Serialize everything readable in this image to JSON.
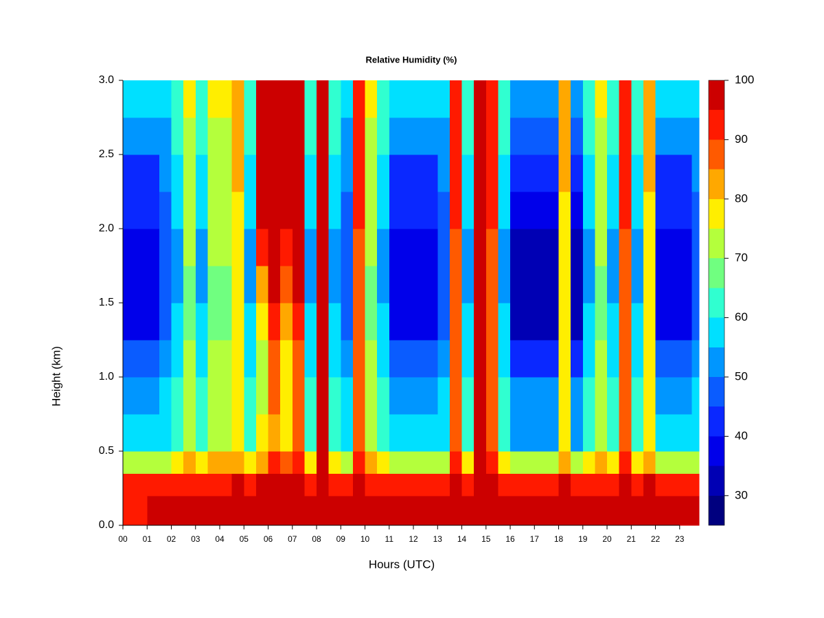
{
  "chart_data": {
    "type": "heatmap",
    "title": "Relative Humidity (%)",
    "x_label": "Hours (UTC)",
    "y_label": "Height (km)",
    "x": [
      0,
      0.5,
      1,
      1.5,
      2,
      2.5,
      3,
      3.5,
      4,
      4.5,
      5,
      5.5,
      6,
      6.5,
      7,
      7.5,
      8,
      8.5,
      9,
      9.5,
      10,
      10.5,
      11,
      11.5,
      12,
      12.5,
      13,
      13.5,
      14,
      14.5,
      15,
      15.5,
      16,
      16.5,
      17,
      17.5,
      18,
      18.5,
      19,
      19.5,
      20,
      20.5,
      21,
      21.5,
      22,
      22.5,
      23,
      23.5,
      23.8
    ],
    "y": [
      0,
      0.2,
      0.35,
      0.5,
      0.75,
      1,
      1.25,
      1.5,
      1.75,
      2,
      2.25,
      2.5,
      2.75,
      3
    ],
    "z": [
      [
        92,
        92,
        97,
        97,
        97,
        97,
        97,
        97,
        97,
        97,
        97,
        97,
        98,
        97,
        98,
        97,
        98,
        97,
        97,
        97,
        97,
        97,
        97,
        97,
        97,
        97,
        97,
        97,
        97,
        98,
        97,
        97,
        97,
        97,
        97,
        97,
        97,
        97,
        97,
        97,
        97,
        97,
        97,
        97,
        97,
        97,
        97,
        97
      ],
      [
        90,
        90,
        92,
        92,
        93,
        94,
        93,
        94,
        94,
        95,
        93,
        95,
        96,
        95,
        96,
        93,
        97,
        93,
        92,
        96,
        94,
        93,
        92,
        92,
        92,
        92,
        92,
        96,
        93,
        97,
        96,
        93,
        92,
        92,
        92,
        92,
        95,
        92,
        93,
        94,
        93,
        96,
        93,
        95,
        92,
        92,
        92,
        92
      ],
      [
        72,
        72,
        72,
        74,
        76,
        80,
        76,
        80,
        80,
        84,
        76,
        84,
        90,
        86,
        90,
        76,
        96,
        76,
        74,
        92,
        80,
        76,
        72,
        72,
        72,
        72,
        74,
        92,
        76,
        96,
        92,
        76,
        72,
        72,
        72,
        72,
        84,
        72,
        76,
        80,
        76,
        92,
        76,
        84,
        72,
        72,
        72,
        74
      ],
      [
        55,
        55,
        55,
        57,
        62,
        74,
        62,
        74,
        74,
        78,
        62,
        76,
        84,
        78,
        86,
        62,
        95,
        62,
        57,
        88,
        74,
        62,
        55,
        55,
        55,
        55,
        57,
        88,
        62,
        95,
        88,
        62,
        53,
        53,
        53,
        53,
        78,
        53,
        62,
        74,
        62,
        88,
        62,
        78,
        55,
        55,
        55,
        57
      ],
      [
        52,
        52,
        52,
        55,
        60,
        72,
        60,
        72,
        72,
        77,
        60,
        74,
        86,
        76,
        86,
        60,
        96,
        60,
        55,
        88,
        72,
        60,
        52,
        52,
        52,
        52,
        55,
        88,
        60,
        96,
        88,
        60,
        50,
        50,
        50,
        50,
        77,
        50,
        60,
        72,
        60,
        88,
        60,
        77,
        52,
        52,
        52,
        55
      ],
      [
        45,
        45,
        45,
        50,
        57,
        70,
        57,
        70,
        70,
        76,
        57,
        74,
        88,
        76,
        88,
        57,
        97,
        57,
        50,
        88,
        70,
        57,
        45,
        45,
        45,
        45,
        50,
        88,
        57,
        97,
        88,
        57,
        42,
        42,
        42,
        42,
        76,
        42,
        57,
        70,
        57,
        88,
        57,
        76,
        45,
        45,
        45,
        50
      ],
      [
        38,
        38,
        38,
        46,
        55,
        69,
        55,
        69,
        69,
        76,
        55,
        76,
        92,
        80,
        92,
        55,
        97,
        55,
        46,
        88,
        69,
        55,
        38,
        38,
        38,
        38,
        46,
        88,
        55,
        97,
        88,
        55,
        34,
        34,
        34,
        34,
        76,
        34,
        55,
        69,
        55,
        88,
        55,
        76,
        38,
        38,
        38,
        46
      ],
      [
        36,
        36,
        36,
        45,
        54,
        69,
        54,
        69,
        69,
        77,
        54,
        84,
        96,
        88,
        96,
        54,
        97,
        54,
        45,
        88,
        69,
        54,
        36,
        36,
        36,
        36,
        45,
        88,
        54,
        97,
        88,
        54,
        32,
        32,
        32,
        32,
        77,
        32,
        54,
        69,
        54,
        88,
        54,
        77,
        36,
        36,
        36,
        45
      ],
      [
        36,
        36,
        36,
        45,
        54,
        70,
        54,
        70,
        70,
        78,
        54,
        92,
        97,
        94,
        97,
        54,
        97,
        54,
        45,
        89,
        70,
        54,
        36,
        36,
        36,
        36,
        45,
        89,
        54,
        97,
        89,
        54,
        32,
        32,
        32,
        32,
        78,
        32,
        54,
        70,
        54,
        89,
        54,
        78,
        36,
        36,
        36,
        45
      ],
      [
        40,
        40,
        40,
        47,
        55,
        70,
        55,
        70,
        70,
        78,
        55,
        95,
        97,
        96,
        97,
        55,
        97,
        55,
        47,
        90,
        70,
        55,
        40,
        40,
        40,
        40,
        47,
        90,
        55,
        97,
        90,
        55,
        37,
        37,
        37,
        37,
        78,
        37,
        55,
        70,
        55,
        90,
        55,
        78,
        40,
        40,
        40,
        47
      ],
      [
        44,
        44,
        44,
        50,
        57,
        72,
        57,
        72,
        72,
        80,
        57,
        96,
        97,
        96,
        97,
        57,
        97,
        57,
        50,
        91,
        72,
        57,
        44,
        44,
        44,
        44,
        50,
        91,
        57,
        97,
        91,
        57,
        42,
        42,
        42,
        42,
        80,
        42,
        57,
        72,
        57,
        91,
        57,
        80,
        44,
        44,
        44,
        50
      ],
      [
        50,
        50,
        50,
        54,
        60,
        74,
        60,
        74,
        74,
        82,
        60,
        97,
        97,
        97,
        97,
        60,
        97,
        60,
        54,
        92,
        74,
        60,
        50,
        50,
        50,
        50,
        54,
        92,
        60,
        97,
        92,
        60,
        48,
        48,
        48,
        48,
        82,
        48,
        60,
        74,
        60,
        92,
        60,
        82,
        50,
        50,
        50,
        54
      ],
      [
        55,
        55,
        55,
        57,
        62,
        76,
        62,
        76,
        76,
        84,
        62,
        97,
        97,
        97,
        97,
        62,
        97,
        62,
        57,
        93,
        76,
        62,
        55,
        55,
        55,
        55,
        57,
        93,
        62,
        97,
        93,
        62,
        53,
        53,
        53,
        53,
        84,
        53,
        62,
        76,
        62,
        93,
        62,
        84,
        55,
        55,
        55,
        57
      ]
    ],
    "xlim": [
      0,
      23.8
    ],
    "ylim": [
      0,
      3
    ],
    "xticks": [
      {
        "value": 0,
        "label": "00"
      },
      {
        "value": 1,
        "label": "01"
      },
      {
        "value": 2,
        "label": "02"
      },
      {
        "value": 3,
        "label": "03"
      },
      {
        "value": 4,
        "label": "04"
      },
      {
        "value": 5,
        "label": "05"
      },
      {
        "value": 6,
        "label": "06"
      },
      {
        "value": 7,
        "label": "07"
      },
      {
        "value": 8,
        "label": "08"
      },
      {
        "value": 9,
        "label": "09"
      },
      10,
      11,
      12,
      13,
      14,
      15,
      16,
      17,
      18,
      19,
      20,
      21,
      22,
      23
    ],
    "yticks": [
      {
        "value": 0,
        "label": "0.0"
      },
      0.5,
      {
        "value": 1,
        "label": "1.0"
      },
      1.5,
      {
        "value": 2,
        "label": "2.0"
      },
      2.5,
      {
        "value": 3,
        "label": "3.0"
      }
    ],
    "levels": [
      25,
      30,
      35,
      40,
      45,
      50,
      55,
      60,
      65,
      70,
      75,
      80,
      85,
      90,
      95,
      100
    ],
    "colors": [
      "#00007f",
      "#0000b4",
      "#0000ea",
      "#0a28ff",
      "#0a5cff",
      "#0096ff",
      "#00e0ff",
      "#30ffd0",
      "#70ff80",
      "#b4ff3c",
      "#ffee00",
      "#ffa800",
      "#ff5a00",
      "#ff1a00",
      "#cc0000",
      "#7f0000"
    ],
    "colorbar_ticks": [
      30,
      40,
      50,
      60,
      70,
      80,
      90,
      100
    ]
  }
}
